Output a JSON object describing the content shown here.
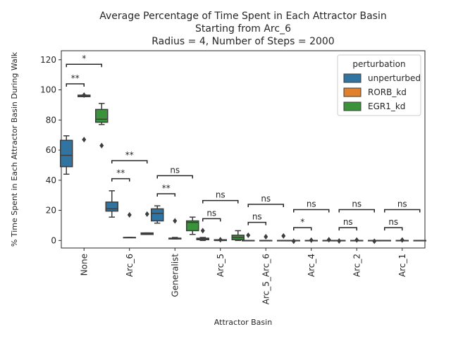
{
  "chart_data": {
    "type": "box",
    "title_lines": [
      "Average Percentage of Time Spent in Each Attractor Basin",
      "Starting from Arc_6",
      "Radius = 4, Number of Steps = 2000"
    ],
    "xlabel": "Attractor Basin",
    "ylabel": "% Time Spent in Each Attractor Basin During Walk",
    "ylim": [
      -5,
      126
    ],
    "yticks": [
      0,
      20,
      40,
      60,
      80,
      100,
      120
    ],
    "categories": [
      "None",
      "Arc_6",
      "Generalist",
      "Arc_5",
      "Arc_5_Arc_6",
      "Arc_4",
      "Arc_2",
      "Arc_1"
    ],
    "legend": {
      "title": "perturbation",
      "placement": "top-right"
    },
    "series": [
      {
        "name": "unperturbed",
        "color": "#3274a1",
        "boxes": [
          {
            "q1": 49,
            "median": 56.5,
            "q3": 66.5,
            "low": 44,
            "high": 69.5,
            "outliers": []
          },
          {
            "q1": 19.5,
            "median": 21,
            "q3": 25.5,
            "low": 15.5,
            "high": 33,
            "outliers": []
          },
          {
            "q1": 13,
            "median": 18,
            "q3": 21,
            "low": 11.5,
            "high": 23,
            "outliers": []
          },
          {
            "q1": 0.5,
            "median": 1,
            "q3": 1.5,
            "low": 0,
            "high": 2,
            "outliers": [
              6.5
            ]
          },
          {
            "q1": 0,
            "median": 0,
            "q3": 0,
            "low": 0,
            "high": 0,
            "outliers": [
              3.5
            ]
          },
          {
            "q1": 0,
            "median": 0,
            "q3": 0,
            "low": 0,
            "high": 0,
            "outliers": [
              -0.5
            ]
          },
          {
            "q1": 0,
            "median": 0,
            "q3": 0,
            "low": 0,
            "high": 0,
            "outliers": [
              -0.3
            ]
          },
          {
            "q1": 0,
            "median": 0,
            "q3": 0,
            "low": 0,
            "high": 0,
            "outliers": []
          }
        ]
      },
      {
        "name": "RORB_kd",
        "color": "#e1812c",
        "boxes": [
          {
            "q1": 95.5,
            "median": 96,
            "q3": 96.5,
            "low": 95.5,
            "high": 96.5,
            "outliers": [
              96.5,
              67
            ]
          },
          {
            "q1": 2,
            "median": 2,
            "q3": 2,
            "low": 2,
            "high": 2,
            "outliers": [
              17
            ]
          },
          {
            "q1": 1,
            "median": 1.5,
            "q3": 1.5,
            "low": 1,
            "high": 2,
            "outliers": [
              13
            ]
          },
          {
            "q1": 0,
            "median": 0,
            "q3": 0.5,
            "low": 0,
            "high": 0.5,
            "outliers": [
              0.5
            ]
          },
          {
            "q1": 0,
            "median": 0,
            "q3": 0,
            "low": 0,
            "high": 0,
            "outliers": [
              2.5
            ]
          },
          {
            "q1": 0,
            "median": 0,
            "q3": 0,
            "low": 0,
            "high": 0,
            "outliers": [
              0.2
            ]
          },
          {
            "q1": 0,
            "median": 0,
            "q3": 0,
            "low": 0,
            "high": 0,
            "outliers": [
              0.3
            ]
          },
          {
            "q1": 0,
            "median": 0,
            "q3": 0,
            "low": 0,
            "high": 0,
            "outliers": [
              0.3
            ]
          }
        ]
      },
      {
        "name": "EGR1_kd",
        "color": "#3a923a",
        "boxes": [
          {
            "q1": 78.5,
            "median": 80.5,
            "q3": 87,
            "low": 77,
            "high": 91,
            "outliers": [
              63
            ]
          },
          {
            "q1": 4,
            "median": 4.5,
            "q3": 5,
            "low": 4,
            "high": 5,
            "outliers": [
              17.5
            ]
          },
          {
            "q1": 6.5,
            "median": 12,
            "q3": 13,
            "low": 4,
            "high": 15.5,
            "outliers": []
          },
          {
            "q1": 0.5,
            "median": 2,
            "q3": 3.5,
            "low": 0,
            "high": 6.5,
            "outliers": []
          },
          {
            "q1": 0,
            "median": 0,
            "q3": 0,
            "low": 0,
            "high": 0,
            "outliers": [
              3
            ]
          },
          {
            "q1": 0,
            "median": 0,
            "q3": 0,
            "low": 0,
            "high": 0,
            "outliers": [
              0.5
            ]
          },
          {
            "q1": 0,
            "median": 0,
            "q3": 0,
            "low": 0,
            "high": 0,
            "outliers": [
              -0.5
            ]
          },
          {
            "q1": 0,
            "median": 0,
            "q3": 0,
            "low": 0,
            "high": 0,
            "outliers": []
          }
        ]
      }
    ],
    "annotations": [
      {
        "category": 0,
        "from": 0,
        "to": 1,
        "label": "**",
        "level": 104
      },
      {
        "category": 0,
        "from": 0,
        "to": 2,
        "label": "*",
        "level": 117
      },
      {
        "category": 1,
        "from": 0,
        "to": 1,
        "label": "**",
        "level": 41
      },
      {
        "category": 1,
        "from": 0,
        "to": 2,
        "label": "**",
        "level": 53
      },
      {
        "category": 2,
        "from": 0,
        "to": 1,
        "label": "**",
        "level": 31
      },
      {
        "category": 2,
        "from": 0,
        "to": 2,
        "label": "ns",
        "level": 43
      },
      {
        "category": 3,
        "from": 0,
        "to": 1,
        "label": "ns",
        "level": 14.5
      },
      {
        "category": 3,
        "from": 0,
        "to": 2,
        "label": "ns",
        "level": 26.5
      },
      {
        "category": 4,
        "from": 0,
        "to": 1,
        "label": "ns",
        "level": 12
      },
      {
        "category": 4,
        "from": 0,
        "to": 2,
        "label": "ns",
        "level": 24
      },
      {
        "category": 5,
        "from": 0,
        "to": 1,
        "label": "*",
        "level": 8.5
      },
      {
        "category": 5,
        "from": 0,
        "to": 2,
        "label": "ns",
        "level": 20.5
      },
      {
        "category": 6,
        "from": 0,
        "to": 1,
        "label": "ns",
        "level": 8.5
      },
      {
        "category": 6,
        "from": 0,
        "to": 2,
        "label": "ns",
        "level": 20.5
      },
      {
        "category": 7,
        "from": 0,
        "to": 1,
        "label": "ns",
        "level": 8.5
      },
      {
        "category": 7,
        "from": 0,
        "to": 2,
        "label": "ns",
        "level": 20.5
      }
    ]
  }
}
